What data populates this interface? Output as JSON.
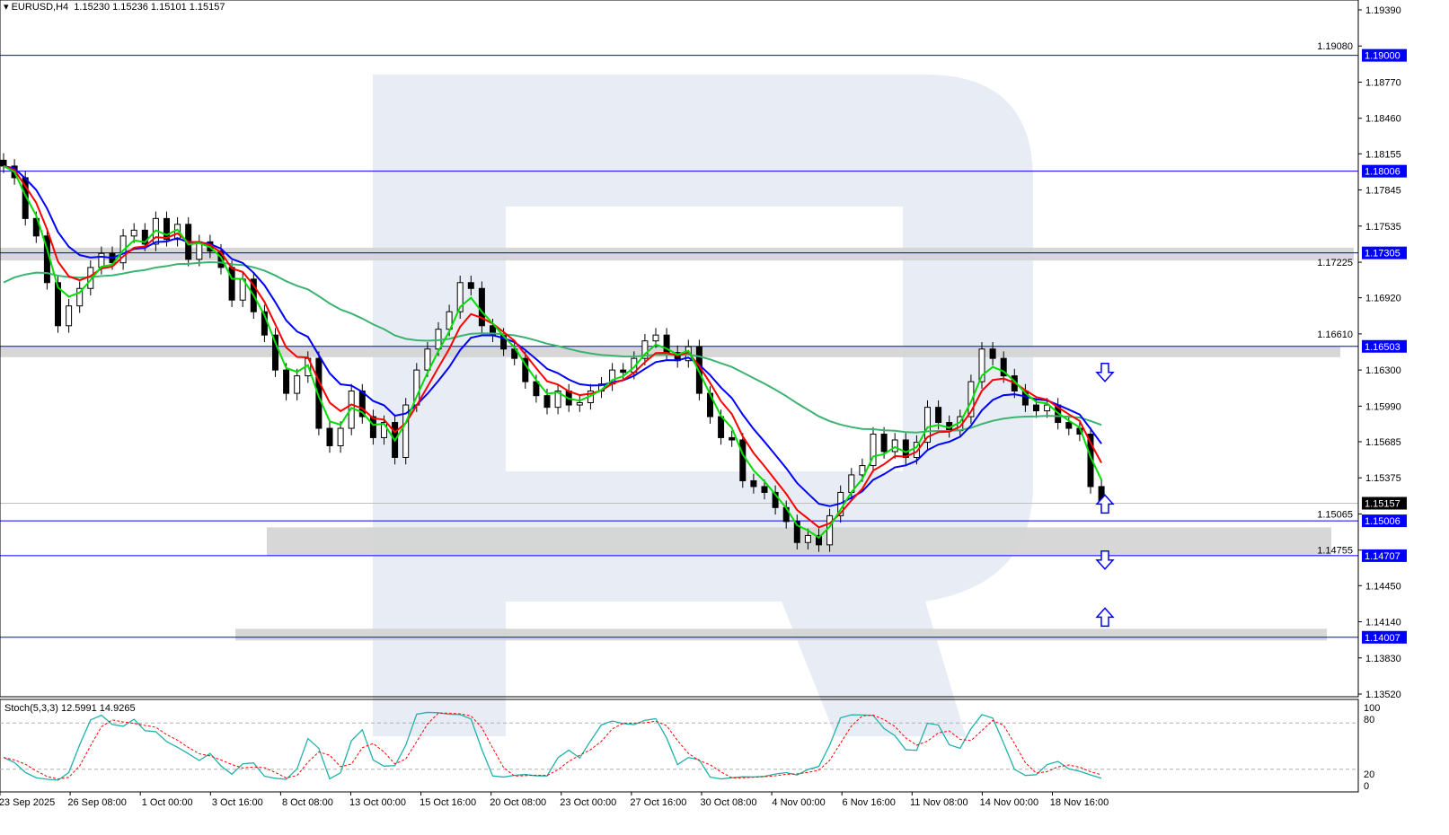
{
  "header": {
    "symbol": "EURUSD,H4",
    "ohlc": "1.15230 1.15236 1.15101 1.15157"
  },
  "stoch": {
    "label": "Stoch(5,3,3) 12.5991 14.9265",
    "ticks": [
      "100",
      "80",
      "20",
      "0"
    ]
  },
  "colors": {
    "bull": "#000000",
    "bear": "#000000",
    "ma_fast": "#00dd00",
    "ma_mid": "#ff0000",
    "ma_slow": "#0000ff",
    "ma_long": "#3cb371",
    "level": "#0000ff",
    "zone": "#d3d3d3",
    "stoch_main": "#20b2aa",
    "stoch_signal": "#ff0000",
    "watermark": "#e8edf5",
    "current_price": "#000000"
  },
  "chart_data": {
    "type": "candlestick",
    "ylim": [
      1.1352,
      1.1939
    ],
    "yticks": [
      "1.19390",
      "1.19080",
      "1.18770",
      "1.18460",
      "1.18155",
      "1.17845",
      "1.17535",
      "1.17225",
      "1.16920",
      "1.16610",
      "1.16300",
      "1.15990",
      "1.15685",
      "1.15375",
      "1.15065",
      "1.14755",
      "1.14450",
      "1.14140",
      "1.13830",
      "1.13520"
    ],
    "xticks": [
      "23 Sep 2025",
      "26 Sep 08:00",
      "1 Oct 00:00",
      "3 Oct 16:00",
      "8 Oct 08:00",
      "13 Oct 00:00",
      "15 Oct 16:00",
      "20 Oct 08:00",
      "23 Oct 00:00",
      "27 Oct 16:00",
      "30 Oct 08:00",
      "4 Nov 00:00",
      "6 Nov 16:00",
      "11 Nov 08:00",
      "14 Nov 00:00",
      "18 Nov 16:00"
    ],
    "closes": [
      1.1805,
      1.1795,
      1.176,
      1.1745,
      1.1705,
      1.1668,
      1.1685,
      1.17,
      1.1718,
      1.173,
      1.1722,
      1.1745,
      1.175,
      1.1738,
      1.176,
      1.1742,
      1.1755,
      1.1725,
      1.174,
      1.1732,
      1.1718,
      1.169,
      1.1708,
      1.168,
      1.166,
      1.163,
      1.161,
      1.1625,
      1.164,
      1.158,
      1.1565,
      1.158,
      1.1612,
      1.159,
      1.1572,
      1.1585,
      1.1555,
      1.16,
      1.163,
      1.1648,
      1.1665,
      1.168,
      1.1705,
      1.17,
      1.1668,
      1.166,
      1.1648,
      1.164,
      1.162,
      1.1608,
      1.1598,
      1.1612,
      1.16,
      1.1602,
      1.1612,
      1.1618,
      1.163,
      1.1628,
      1.164,
      1.1655,
      1.166,
      1.1645,
      1.1638,
      1.165,
      1.161,
      1.159,
      1.1572,
      1.157,
      1.1535,
      1.153,
      1.1525,
      1.1512,
      1.15,
      1.1482,
      1.1488,
      1.148,
      1.1505,
      1.1525,
      1.154,
      1.1548,
      1.1575,
      1.156,
      1.157,
      1.1555,
      1.1568,
      1.1598,
      1.1585,
      1.1578,
      1.159,
      1.162,
      1.1648,
      1.164,
      1.1625,
      1.1612,
      1.16,
      1.1595,
      1.16,
      1.1585,
      1.158,
      1.1575,
      1.153,
      1.1516
    ],
    "current_price": "1.15157",
    "levels": [
      "1.19000",
      "1.18006",
      "1.17305",
      "1.16503",
      "1.15006",
      "1.14707",
      "1.14007"
    ],
    "zones": [
      [
        1.1724,
        1.1735
      ],
      [
        1.1641,
        1.165
      ],
      [
        1.1471,
        1.1495
      ],
      [
        1.1398,
        1.1408
      ]
    ],
    "signals": [
      {
        "dir": "down",
        "price": 1.1628
      },
      {
        "dir": "up",
        "price": 1.1515
      },
      {
        "dir": "down",
        "price": 1.1467
      },
      {
        "dir": "up",
        "price": 1.1418
      }
    ],
    "indicators": [
      "MA fast",
      "MA mid",
      "MA slow",
      "MA long",
      "Stochastic(5,3,3)"
    ],
    "stoch_levels": [
      80,
      20
    ]
  }
}
